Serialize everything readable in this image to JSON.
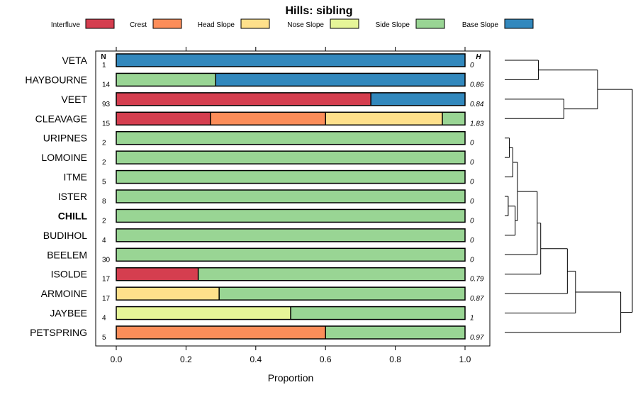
{
  "chart_data": {
    "type": "bar",
    "orientation": "horizontal",
    "stacked": true,
    "title": "Hills: sibling",
    "xlabel": "Proportion",
    "ylabel": "",
    "xlim": [
      0,
      1
    ],
    "xticks": [
      "0.0",
      "0.2",
      "0.4",
      "0.6",
      "0.8",
      "1.0"
    ],
    "xtick_values": [
      0,
      0.2,
      0.4,
      0.6,
      0.8,
      1.0
    ],
    "n_header": "N",
    "h_header": "H",
    "legend": [
      {
        "name": "Interfluve",
        "color": "#d53e4f"
      },
      {
        "name": "Crest",
        "color": "#fc8d59"
      },
      {
        "name": "Head Slope",
        "color": "#fee08b"
      },
      {
        "name": "Nose Slope",
        "color": "#e6f598"
      },
      {
        "name": "Side Slope",
        "color": "#99d594"
      },
      {
        "name": "Base Slope",
        "color": "#3288bd"
      }
    ],
    "highlight": "CHILL",
    "categories": [
      "VETA",
      "HAYBOURNE",
      "VEET",
      "CLEAVAGE",
      "URIPNES",
      "LOMOINE",
      "ITME",
      "ISTER",
      "CHILL",
      "BUDIHOL",
      "BEELEM",
      "ISOLDE",
      "ARMOINE",
      "JAYBEE",
      "PETSPRING"
    ],
    "n": [
      "1",
      "14",
      "93",
      "15",
      "2",
      "2",
      "5",
      "8",
      "2",
      "4",
      "30",
      "17",
      "17",
      "4",
      "5"
    ],
    "h": [
      "0",
      "0.86",
      "0.84",
      "1.83",
      "0",
      "0",
      "0",
      "0",
      "0",
      "0",
      "0",
      "0.79",
      "0.87",
      "1",
      "0.97"
    ],
    "series": [
      {
        "name": "Interfluve",
        "values": [
          0,
          0,
          0.73,
          0.27,
          0,
          0,
          0,
          0,
          0,
          0,
          0,
          0.235,
          0,
          0,
          0
        ]
      },
      {
        "name": "Crest",
        "values": [
          0,
          0,
          0,
          0.33,
          0,
          0,
          0,
          0,
          0,
          0,
          0,
          0,
          0,
          0,
          0.6
        ]
      },
      {
        "name": "Head Slope",
        "values": [
          0,
          0,
          0,
          0.335,
          0,
          0,
          0,
          0,
          0,
          0,
          0,
          0,
          0.295,
          0,
          0
        ]
      },
      {
        "name": "Nose Slope",
        "values": [
          0,
          0,
          0,
          0,
          0,
          0,
          0,
          0,
          0,
          0,
          0,
          0,
          0,
          0.5,
          0
        ]
      },
      {
        "name": "Side Slope",
        "values": [
          0,
          0.285,
          0,
          0.065,
          1,
          1,
          1,
          1,
          1,
          1,
          1,
          0.765,
          0.705,
          0.5,
          0.4
        ]
      },
      {
        "name": "Base Slope",
        "values": [
          1,
          0.715,
          0.27,
          0,
          0,
          0,
          0,
          0,
          0,
          0,
          0,
          0,
          0,
          0,
          0
        ]
      }
    ],
    "dendrogram": {
      "type": "dendrogram",
      "leaf_order": [
        "VETA",
        "HAYBOURNE",
        "VEET",
        "CLEAVAGE",
        "URIPNES",
        "LOMOINE",
        "ITME",
        "ISTER",
        "CHILL",
        "BUDIHOL",
        "BEELEM",
        "ISOLDE",
        "ARMOINE",
        "JAYBEE",
        "PETSPRING"
      ],
      "merges": [
        {
          "id": "m1",
          "children": [
            "VETA",
            "HAYBOURNE"
          ],
          "height": 0.29
        },
        {
          "id": "m2",
          "children": [
            "VEET",
            "CLEAVAGE"
          ],
          "height": 0.51
        },
        {
          "id": "m3",
          "children": [
            "m1",
            "m2"
          ],
          "height": 0.8
        },
        {
          "id": "m4",
          "children": [
            "URIPNES",
            "LOMOINE"
          ],
          "height": 0.04
        },
        {
          "id": "m5",
          "children": [
            "ISTER",
            "CHILL"
          ],
          "height": 0.03
        },
        {
          "id": "m6",
          "children": [
            "m4",
            "ITME"
          ],
          "height": 0.07
        },
        {
          "id": "m7",
          "children": [
            "m5",
            "BUDIHOL"
          ],
          "height": 0.09
        },
        {
          "id": "m8",
          "children": [
            "m6",
            "m7"
          ],
          "height": 0.11
        },
        {
          "id": "m9",
          "children": [
            "m8",
            "BEELEM"
          ],
          "height": 0.28
        },
        {
          "id": "m10",
          "children": [
            "m9",
            "ISOLDE"
          ],
          "height": 0.31
        },
        {
          "id": "m11",
          "children": [
            "m10",
            "ARMOINE"
          ],
          "height": 0.54
        },
        {
          "id": "m12",
          "children": [
            "m11",
            "JAYBEE"
          ],
          "height": 0.61
        },
        {
          "id": "m13",
          "children": [
            "m12",
            "PETSPRING"
          ],
          "height": 1.0
        },
        {
          "id": "root",
          "children": [
            "m3",
            "m13"
          ],
          "height": 1.1
        }
      ]
    }
  }
}
